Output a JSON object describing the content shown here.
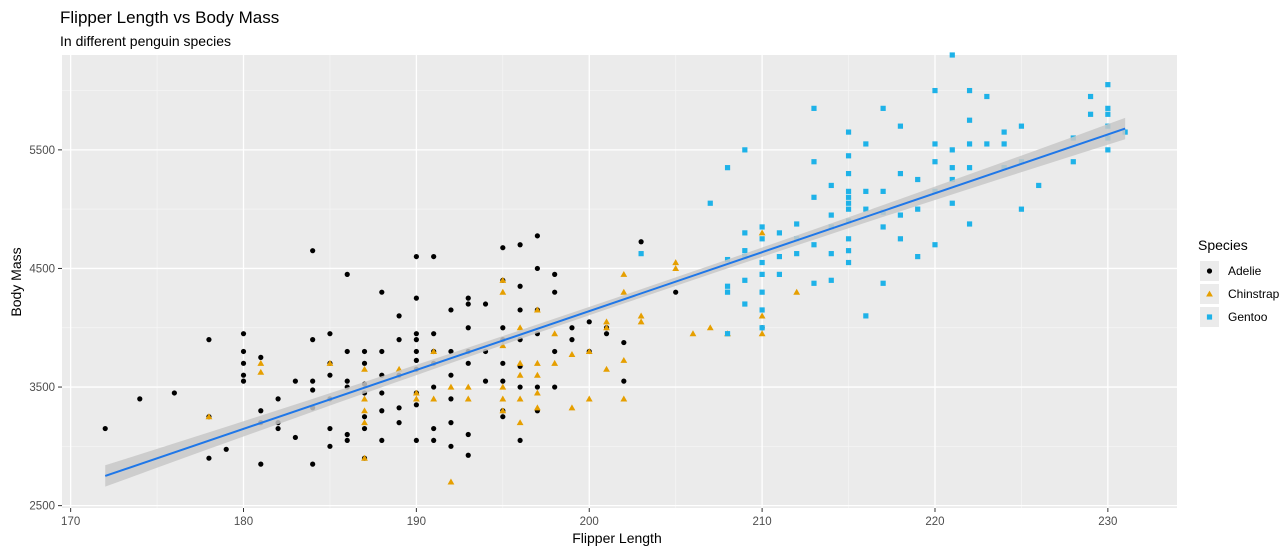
{
  "chart_data": {
    "type": "scatter",
    "title": "Flipper Length vs Body Mass",
    "subtitle": "In different penguin species",
    "xlabel": "Flipper Length",
    "ylabel": "Body Mass",
    "xlim": [
      169.5,
      234
    ],
    "ylim": [
      2480,
      6300
    ],
    "x_ticks": [
      170,
      180,
      190,
      200,
      210,
      220,
      230
    ],
    "y_ticks": [
      2500,
      3500,
      4500,
      5500
    ],
    "grid": true,
    "legend_title": "Species",
    "legend_position": "right",
    "regression": {
      "method": "linear",
      "x_range": [
        172,
        231
      ],
      "y_range": [
        2750,
        5680
      ],
      "ci_halfwidth_ends": 90,
      "ci_halfwidth_center": 35,
      "color": "#1f77e8",
      "band_color": "#c8c8c8"
    },
    "series": [
      {
        "name": "Adelie",
        "marker": "circle",
        "color": "#000000",
        "points": [
          [
            172,
            3150
          ],
          [
            174,
            3400
          ],
          [
            176,
            3450
          ],
          [
            178,
            3900
          ],
          [
            178,
            2900
          ],
          [
            178,
            3250
          ],
          [
            179,
            2975
          ],
          [
            180,
            3950
          ],
          [
            180,
            3800
          ],
          [
            180,
            3700
          ],
          [
            180,
            3600
          ],
          [
            180,
            3550
          ],
          [
            181,
            3750
          ],
          [
            181,
            3300
          ],
          [
            181,
            3200
          ],
          [
            181,
            2850
          ],
          [
            182,
            3400
          ],
          [
            182,
            3200
          ],
          [
            182,
            3150
          ],
          [
            183,
            3550
          ],
          [
            183,
            3075
          ],
          [
            184,
            4650
          ],
          [
            184,
            3900
          ],
          [
            184,
            3550
          ],
          [
            184,
            3475
          ],
          [
            184,
            3325
          ],
          [
            184,
            2850
          ],
          [
            185,
            3950
          ],
          [
            185,
            3700
          ],
          [
            185,
            3600
          ],
          [
            185,
            3400
          ],
          [
            185,
            3150
          ],
          [
            185,
            3000
          ],
          [
            186,
            4450
          ],
          [
            186,
            3800
          ],
          [
            186,
            3550
          ],
          [
            186,
            3500
          ],
          [
            186,
            3100
          ],
          [
            186,
            3050
          ],
          [
            187,
            3800
          ],
          [
            187,
            3700
          ],
          [
            187,
            3525
          ],
          [
            187,
            3450
          ],
          [
            187,
            3250
          ],
          [
            187,
            3150
          ],
          [
            187,
            2900
          ],
          [
            188,
            4300
          ],
          [
            188,
            3800
          ],
          [
            188,
            3600
          ],
          [
            188,
            3450
          ],
          [
            188,
            3300
          ],
          [
            188,
            3050
          ],
          [
            189,
            4100
          ],
          [
            189,
            3900
          ],
          [
            189,
            3600
          ],
          [
            189,
            3325
          ],
          [
            189,
            3200
          ],
          [
            190,
            4600
          ],
          [
            190,
            4250
          ],
          [
            190,
            3950
          ],
          [
            190,
            3900
          ],
          [
            190,
            3800
          ],
          [
            190,
            3725
          ],
          [
            190,
            3650
          ],
          [
            190,
            3450
          ],
          [
            190,
            3350
          ],
          [
            190,
            3050
          ],
          [
            191,
            4600
          ],
          [
            191,
            3950
          ],
          [
            191,
            3800
          ],
          [
            191,
            3700
          ],
          [
            191,
            3500
          ],
          [
            191,
            3150
          ],
          [
            191,
            3050
          ],
          [
            192,
            4150
          ],
          [
            192,
            3800
          ],
          [
            192,
            3600
          ],
          [
            192,
            3400
          ],
          [
            192,
            3200
          ],
          [
            192,
            3000
          ],
          [
            193,
            4250
          ],
          [
            193,
            4200
          ],
          [
            193,
            4000
          ],
          [
            193,
            3800
          ],
          [
            193,
            3700
          ],
          [
            193,
            3100
          ],
          [
            193,
            2925
          ],
          [
            194,
            4200
          ],
          [
            194,
            3800
          ],
          [
            194,
            3550
          ],
          [
            195,
            4675
          ],
          [
            195,
            4400
          ],
          [
            195,
            4000
          ],
          [
            195,
            3900
          ],
          [
            195,
            3700
          ],
          [
            195,
            3550
          ],
          [
            195,
            3300
          ],
          [
            195,
            3250
          ],
          [
            196,
            4700
          ],
          [
            196,
            4350
          ],
          [
            196,
            4150
          ],
          [
            196,
            3900
          ],
          [
            196,
            3675
          ],
          [
            196,
            3500
          ],
          [
            196,
            3050
          ],
          [
            197,
            4775
          ],
          [
            197,
            4500
          ],
          [
            197,
            4150
          ],
          [
            197,
            3950
          ],
          [
            197,
            3500
          ],
          [
            197,
            3300
          ],
          [
            198,
            4450
          ],
          [
            198,
            4300
          ],
          [
            198,
            3800
          ],
          [
            198,
            3500
          ],
          [
            199,
            4000
          ],
          [
            199,
            3900
          ],
          [
            200,
            4050
          ],
          [
            200,
            3800
          ],
          [
            201,
            4000
          ],
          [
            201,
            3950
          ],
          [
            202,
            3875
          ],
          [
            202,
            3550
          ],
          [
            203,
            4725
          ],
          [
            205,
            4300
          ],
          [
            210,
            4000
          ]
        ]
      },
      {
        "name": "Chinstrap",
        "marker": "triangle",
        "color": "#E69F00",
        "points": [
          [
            178,
            3250
          ],
          [
            181,
            3700
          ],
          [
            181,
            3625
          ],
          [
            185,
            3700
          ],
          [
            187,
            3650
          ],
          [
            187,
            3400
          ],
          [
            187,
            3300
          ],
          [
            187,
            3200
          ],
          [
            187,
            2900
          ],
          [
            189,
            3650
          ],
          [
            190,
            3450
          ],
          [
            190,
            3400
          ],
          [
            191,
            3800
          ],
          [
            191,
            3400
          ],
          [
            192,
            3500
          ],
          [
            192,
            2700
          ],
          [
            193,
            3500
          ],
          [
            193,
            3400
          ],
          [
            195,
            4400
          ],
          [
            195,
            4300
          ],
          [
            195,
            3850
          ],
          [
            195,
            3500
          ],
          [
            195,
            3400
          ],
          [
            195,
            3300
          ],
          [
            196,
            4000
          ],
          [
            196,
            3700
          ],
          [
            196,
            3600
          ],
          [
            196,
            3400
          ],
          [
            196,
            3200
          ],
          [
            197,
            4150
          ],
          [
            197,
            3700
          ],
          [
            197,
            3600
          ],
          [
            197,
            3450
          ],
          [
            197,
            3325
          ],
          [
            198,
            3950
          ],
          [
            198,
            3700
          ],
          [
            199,
            3775
          ],
          [
            199,
            3325
          ],
          [
            200,
            3800
          ],
          [
            200,
            3400
          ],
          [
            201,
            4050
          ],
          [
            201,
            4000
          ],
          [
            201,
            3650
          ],
          [
            202,
            4450
          ],
          [
            202,
            4300
          ],
          [
            202,
            3725
          ],
          [
            202,
            3400
          ],
          [
            203,
            4100
          ],
          [
            203,
            4050
          ],
          [
            205,
            4550
          ],
          [
            205,
            4500
          ],
          [
            206,
            3950
          ],
          [
            207,
            4000
          ],
          [
            208,
            3950
          ],
          [
            210,
            4800
          ],
          [
            210,
            4100
          ],
          [
            210,
            3950
          ],
          [
            212,
            4300
          ]
        ]
      },
      {
        "name": "Gentoo",
        "marker": "square",
        "color": "#1EB2E8",
        "points": [
          [
            203,
            4625
          ],
          [
            207,
            5050
          ],
          [
            208,
            5350
          ],
          [
            208,
            4575
          ],
          [
            208,
            4350
          ],
          [
            208,
            4300
          ],
          [
            208,
            3950
          ],
          [
            209,
            5500
          ],
          [
            209,
            4800
          ],
          [
            209,
            4650
          ],
          [
            209,
            4600
          ],
          [
            209,
            4400
          ],
          [
            209,
            4200
          ],
          [
            210,
            4850
          ],
          [
            210,
            4750
          ],
          [
            210,
            4550
          ],
          [
            210,
            4450
          ],
          [
            210,
            4300
          ],
          [
            210,
            4150
          ],
          [
            210,
            4000
          ],
          [
            211,
            4800
          ],
          [
            211,
            4600
          ],
          [
            211,
            4450
          ],
          [
            212,
            4875
          ],
          [
            212,
            4750
          ],
          [
            212,
            4625
          ],
          [
            213,
            5850
          ],
          [
            213,
            5400
          ],
          [
            213,
            5100
          ],
          [
            213,
            4700
          ],
          [
            213,
            4375
          ],
          [
            214,
            5200
          ],
          [
            214,
            4950
          ],
          [
            214,
            4850
          ],
          [
            214,
            4625
          ],
          [
            214,
            4400
          ],
          [
            215,
            5650
          ],
          [
            215,
            5450
          ],
          [
            215,
            5300
          ],
          [
            215,
            5150
          ],
          [
            215,
            5100
          ],
          [
            215,
            5050
          ],
          [
            215,
            5000
          ],
          [
            215,
            4900
          ],
          [
            215,
            4750
          ],
          [
            215,
            4650
          ],
          [
            215,
            4550
          ],
          [
            216,
            5550
          ],
          [
            216,
            5150
          ],
          [
            216,
            5000
          ],
          [
            216,
            4100
          ],
          [
            217,
            5850
          ],
          [
            217,
            5150
          ],
          [
            217,
            4975
          ],
          [
            217,
            4850
          ],
          [
            217,
            4375
          ],
          [
            218,
            5700
          ],
          [
            218,
            5300
          ],
          [
            218,
            4950
          ],
          [
            218,
            4750
          ],
          [
            219,
            5250
          ],
          [
            219,
            5000
          ],
          [
            219,
            4600
          ],
          [
            220,
            6000
          ],
          [
            220,
            5550
          ],
          [
            220,
            5400
          ],
          [
            220,
            5150
          ],
          [
            220,
            4700
          ],
          [
            221,
            6300
          ],
          [
            221,
            5500
          ],
          [
            221,
            5350
          ],
          [
            221,
            5250
          ],
          [
            221,
            5050
          ],
          [
            222,
            6000
          ],
          [
            222,
            5750
          ],
          [
            222,
            5550
          ],
          [
            222,
            5350
          ],
          [
            222,
            4875
          ],
          [
            223,
            5950
          ],
          [
            223,
            5550
          ],
          [
            224,
            5650
          ],
          [
            224,
            5550
          ],
          [
            224,
            5350
          ],
          [
            225,
            5700
          ],
          [
            225,
            5400
          ],
          [
            225,
            5000
          ],
          [
            226,
            5200
          ],
          [
            228,
            5600
          ],
          [
            228,
            5400
          ],
          [
            229,
            5950
          ],
          [
            229,
            5800
          ],
          [
            230,
            6050
          ],
          [
            230,
            5850
          ],
          [
            230,
            5800
          ],
          [
            230,
            5700
          ],
          [
            230,
            5600
          ],
          [
            230,
            5500
          ],
          [
            231,
            5650
          ]
        ]
      }
    ]
  }
}
